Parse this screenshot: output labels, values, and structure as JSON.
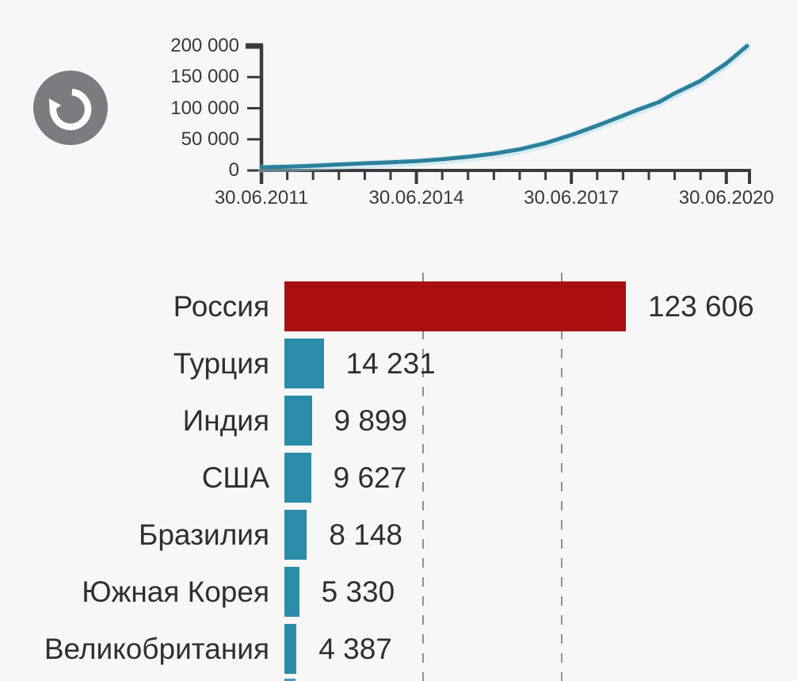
{
  "app": {
    "background_color": "#f7f7f7",
    "text_color": "#2f2f30",
    "axis_color": "#3a3a3c"
  },
  "controls": {
    "replay_button": {
      "icon": "replay-icon",
      "bg_color": "#7b7b80",
      "glyph_color": "#ffffff"
    }
  },
  "chart_data": [
    {
      "type": "line",
      "title": "",
      "line_color": "#2b809a",
      "halo_color": "#a9dcec",
      "grid": false,
      "legend": false,
      "ylim": [
        0,
        200000
      ],
      "xlim_years": [
        2011,
        2020.45
      ],
      "y_ticks": [
        {
          "value": 0,
          "label": "0"
        },
        {
          "value": 50000,
          "label": "50 000"
        },
        {
          "value": 100000,
          "label": "100 000"
        },
        {
          "value": 150000,
          "label": "150 000"
        },
        {
          "value": 200000,
          "label": "200 000"
        }
      ],
      "x_major_ticks": [
        {
          "year": 2011,
          "label": "30.06.2011"
        },
        {
          "year": 2014,
          "label": "30.06.2014"
        },
        {
          "year": 2017,
          "label": "30.06.2017"
        },
        {
          "year": 2020,
          "label": "30.06.2020"
        }
      ],
      "x_minor_step_years": 0.5,
      "x": [
        2011,
        2011.5,
        2012,
        2012.5,
        2013,
        2013.5,
        2014,
        2014.5,
        2015,
        2015.5,
        2016,
        2016.5,
        2017,
        2017.5,
        2018,
        2018.3,
        2018.7,
        2019,
        2019.5,
        2020,
        2020.4
      ],
      "y": [
        5000,
        6000,
        7500,
        9500,
        11500,
        13000,
        15000,
        18000,
        22000,
        27000,
        34000,
        44000,
        57000,
        72000,
        88000,
        98000,
        110000,
        124000,
        144000,
        172000,
        200000
      ]
    },
    {
      "type": "bar",
      "orientation": "horizontal",
      "xlim": [
        0,
        123606
      ],
      "gridline_values": [
        50000,
        100000
      ],
      "highlight_color": "#a90e11",
      "default_color": "#2b8caa",
      "rows": [
        {
          "label": "Россия",
          "value": 123606,
          "value_label": "123 606",
          "highlight": true
        },
        {
          "label": "Турция",
          "value": 14231,
          "value_label": "14 231",
          "highlight": false
        },
        {
          "label": "Индия",
          "value": 9899,
          "value_label": "9 899",
          "highlight": false
        },
        {
          "label": "США",
          "value": 9627,
          "value_label": "9 627",
          "highlight": false
        },
        {
          "label": "Бразилия",
          "value": 8148,
          "value_label": "8 148",
          "highlight": false
        },
        {
          "label": "Южная Корея",
          "value": 5330,
          "value_label": "5 330",
          "highlight": false
        },
        {
          "label": "Великобритания",
          "value": 4387,
          "value_label": "4 387",
          "highlight": false
        }
      ],
      "next_bar_partially_visible": true
    }
  ]
}
